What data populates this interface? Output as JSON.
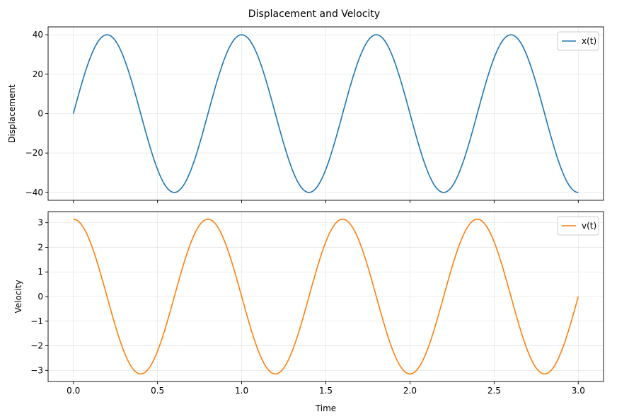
{
  "figure": {
    "title": "Displacement and Velocity"
  },
  "chart_data": [
    {
      "type": "line",
      "title": "",
      "xlabel": "",
      "ylabel": "Displacement",
      "xlim": [
        -0.15,
        3.15
      ],
      "ylim": [
        -44,
        44
      ],
      "x_ticks": [
        0.0,
        0.5,
        1.0,
        1.5,
        2.0,
        2.5,
        3.0
      ],
      "x_tick_labels_visible": false,
      "y_ticks": [
        -40,
        -20,
        0,
        20,
        40
      ],
      "y_tick_labels": [
        "−40",
        "−20",
        "0",
        "20",
        "40"
      ],
      "grid": true,
      "legend": "top-right",
      "series": [
        {
          "name": "x(t)",
          "color": "#1f77b4",
          "function": "40*sin(2*pi*1.25*t)",
          "x_range": [
            0,
            3.0
          ],
          "key_points": [
            [
              0.0,
              0
            ],
            [
              0.2,
              40
            ],
            [
              0.6,
              -40
            ],
            [
              1.0,
              40
            ],
            [
              1.4,
              -40
            ],
            [
              1.8,
              40
            ],
            [
              2.2,
              -40
            ],
            [
              2.6,
              40
            ],
            [
              3.0,
              -40
            ]
          ]
        }
      ]
    },
    {
      "type": "line",
      "title": "",
      "xlabel": "Time",
      "ylabel": "Velocity",
      "xlim": [
        -0.15,
        3.15
      ],
      "ylim": [
        -3.45,
        3.45
      ],
      "x_ticks": [
        0.0,
        0.5,
        1.0,
        1.5,
        2.0,
        2.5,
        3.0
      ],
      "x_tick_labels": [
        "0.0",
        "0.5",
        "1.0",
        "1.5",
        "2.0",
        "2.5",
        "3.0"
      ],
      "y_ticks": [
        -3,
        -2,
        -1,
        0,
        1,
        2,
        3
      ],
      "y_tick_labels": [
        "−3",
        "−2",
        "−1",
        "0",
        "1",
        "2",
        "3"
      ],
      "grid": true,
      "legend": "top-right",
      "series": [
        {
          "name": "v(t)",
          "color": "#ff7f0e",
          "function": "3.1416*cos(2*pi*1.25*t)",
          "x_range": [
            0,
            3.0
          ],
          "key_points": [
            [
              0.0,
              3.14
            ],
            [
              0.4,
              -3.14
            ],
            [
              0.8,
              3.14
            ],
            [
              1.2,
              -3.14
            ],
            [
              1.6,
              3.14
            ],
            [
              2.0,
              -3.14
            ],
            [
              2.4,
              3.14
            ],
            [
              2.8,
              -3.14
            ],
            [
              3.0,
              0
            ]
          ]
        }
      ]
    }
  ]
}
